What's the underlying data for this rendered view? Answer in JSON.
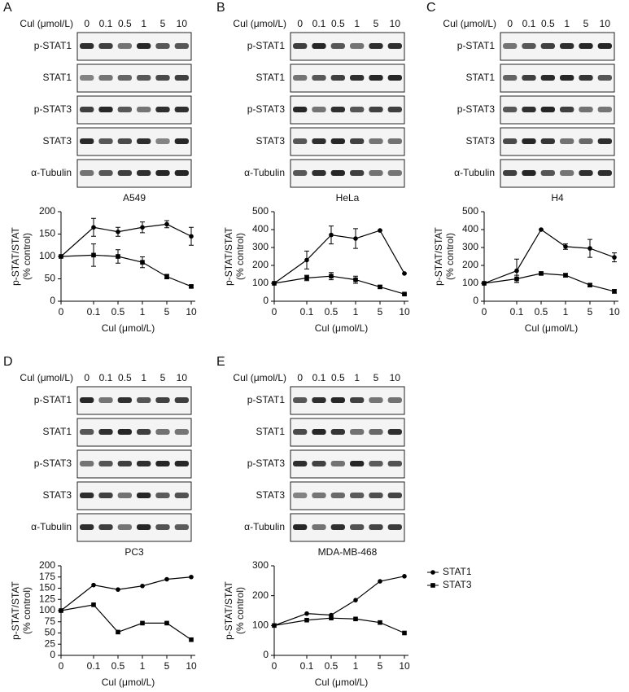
{
  "panels": [
    {
      "label": "A",
      "blot": {
        "treatment": "Cul (μmol/L)",
        "doses": [
          "0",
          "0.1",
          "0.5",
          "1",
          "5",
          "10"
        ],
        "rows": [
          "p-STAT1",
          "STAT1",
          "p-STAT3",
          "STAT3",
          "α-Tubulin"
        ],
        "cell_line": "A549"
      },
      "chart": {
        "type": "line",
        "ylabel": [
          "p-STAT/STAT",
          "(% control)"
        ],
        "xlabel": "Cul (μmol/L)",
        "categories": [
          "0",
          "0.1",
          "0.5",
          "1",
          "5",
          "10"
        ],
        "ylim": [
          0,
          200
        ],
        "yticks": [
          0,
          50,
          100,
          150,
          200
        ],
        "series": [
          {
            "marker": "circle",
            "color": "#000000",
            "values": [
              100,
              165,
              155,
              165,
              172,
              145
            ],
            "errors": [
              0,
              20,
              10,
              12,
              8,
              20
            ]
          },
          {
            "marker": "square",
            "color": "#000000",
            "values": [
              100,
              103,
              100,
              87,
              55,
              33
            ],
            "errors": [
              0,
              25,
              15,
              12,
              5,
              3
            ]
          }
        ]
      }
    },
    {
      "label": "B",
      "blot": {
        "treatment": "Cul (μmol/L)",
        "doses": [
          "0",
          "0.1",
          "0.5",
          "1",
          "5",
          "10"
        ],
        "rows": [
          "p-STAT1",
          "STAT1",
          "p-STAT3",
          "STAT3",
          "α-Tubulin"
        ],
        "cell_line": "HeLa"
      },
      "chart": {
        "type": "line",
        "ylabel": [
          "p-STAT/STAT",
          "(% control)"
        ],
        "xlabel": "Cul (μmol/L)",
        "categories": [
          "0",
          "0.1",
          "0.5",
          "1",
          "5",
          "10"
        ],
        "ylim": [
          0,
          500
        ],
        "yticks": [
          0,
          100,
          200,
          300,
          400,
          500
        ],
        "series": [
          {
            "marker": "circle",
            "color": "#000000",
            "values": [
              100,
              230,
              370,
              350,
              395,
              155
            ],
            "errors": [
              0,
              50,
              50,
              55,
              0,
              0
            ]
          },
          {
            "marker": "square",
            "color": "#000000",
            "values": [
              100,
              130,
              140,
              120,
              80,
              40
            ],
            "errors": [
              0,
              15,
              20,
              20,
              8,
              5
            ]
          }
        ]
      }
    },
    {
      "label": "C",
      "blot": {
        "treatment": "Cul (μmol/L)",
        "doses": [
          "0",
          "0.1",
          "0.5",
          "1",
          "5",
          "10"
        ],
        "rows": [
          "p-STAT1",
          "STAT1",
          "p-STAT3",
          "STAT3",
          "α-Tubulin"
        ],
        "cell_line": "H4"
      },
      "chart": {
        "type": "line",
        "ylabel": [
          "p-STAT/STAT",
          "(% control)"
        ],
        "xlabel": "Cul (μmol/L)",
        "categories": [
          "0",
          "0.1",
          "0.5",
          "1",
          "5",
          "10"
        ],
        "ylim": [
          0,
          500
        ],
        "yticks": [
          0,
          100,
          200,
          300,
          400,
          500
        ],
        "series": [
          {
            "marker": "circle",
            "color": "#000000",
            "values": [
              100,
              170,
              400,
              305,
              295,
              245
            ],
            "errors": [
              0,
              65,
              0,
              15,
              50,
              25
            ]
          },
          {
            "marker": "square",
            "color": "#000000",
            "values": [
              100,
              125,
              155,
              145,
              90,
              55
            ],
            "errors": [
              0,
              20,
              8,
              10,
              8,
              10
            ]
          }
        ]
      }
    },
    {
      "label": "D",
      "blot": {
        "treatment": "Cul (μmol/L)",
        "doses": [
          "0",
          "0.1",
          "0.5",
          "1",
          "5",
          "10"
        ],
        "rows": [
          "p-STAT1",
          "STAT1",
          "p-STAT3",
          "STAT3",
          "α-Tubulin"
        ],
        "cell_line": "PC3"
      },
      "chart": {
        "type": "line",
        "ylabel": [
          "p-STAT/STAT",
          "(% control)"
        ],
        "xlabel": "Cul (μmol/L)",
        "categories": [
          "0",
          "0.1",
          "0.5",
          "1",
          "5",
          "10"
        ],
        "ylim": [
          0,
          200
        ],
        "yticks": [
          0,
          25,
          50,
          75,
          100,
          125,
          150,
          175,
          200
        ],
        "series": [
          {
            "marker": "circle",
            "color": "#000000",
            "values": [
              100,
              157,
              147,
              155,
              170,
              175
            ]
          },
          {
            "marker": "square",
            "color": "#000000",
            "values": [
              100,
              113,
              52,
              72,
              72,
              35
            ]
          }
        ]
      }
    },
    {
      "label": "E",
      "blot": {
        "treatment": "Cul (μmol/L)",
        "doses": [
          "0",
          "0.1",
          "0.5",
          "1",
          "5",
          "10"
        ],
        "rows": [
          "p-STAT1",
          "STAT1",
          "p-STAT3",
          "STAT3",
          "α-Tubulin"
        ],
        "cell_line": "MDA-MB-468"
      },
      "chart": {
        "type": "line",
        "ylabel": [
          "p-STAT/STAT",
          "(% control)"
        ],
        "xlabel": "Cul (μmol/L)",
        "categories": [
          "0",
          "0.1",
          "0.5",
          "1",
          "5",
          "10"
        ],
        "ylim": [
          0,
          300
        ],
        "yticks": [
          0,
          100,
          200,
          300
        ],
        "legend": true,
        "series": [
          {
            "name": "STAT1",
            "marker": "circle",
            "color": "#000000",
            "values": [
              100,
              140,
              135,
              185,
              248,
              265
            ]
          },
          {
            "name": "STAT3",
            "marker": "square",
            "color": "#000000",
            "values": [
              100,
              118,
              125,
              122,
              110,
              75
            ]
          }
        ]
      }
    }
  ]
}
